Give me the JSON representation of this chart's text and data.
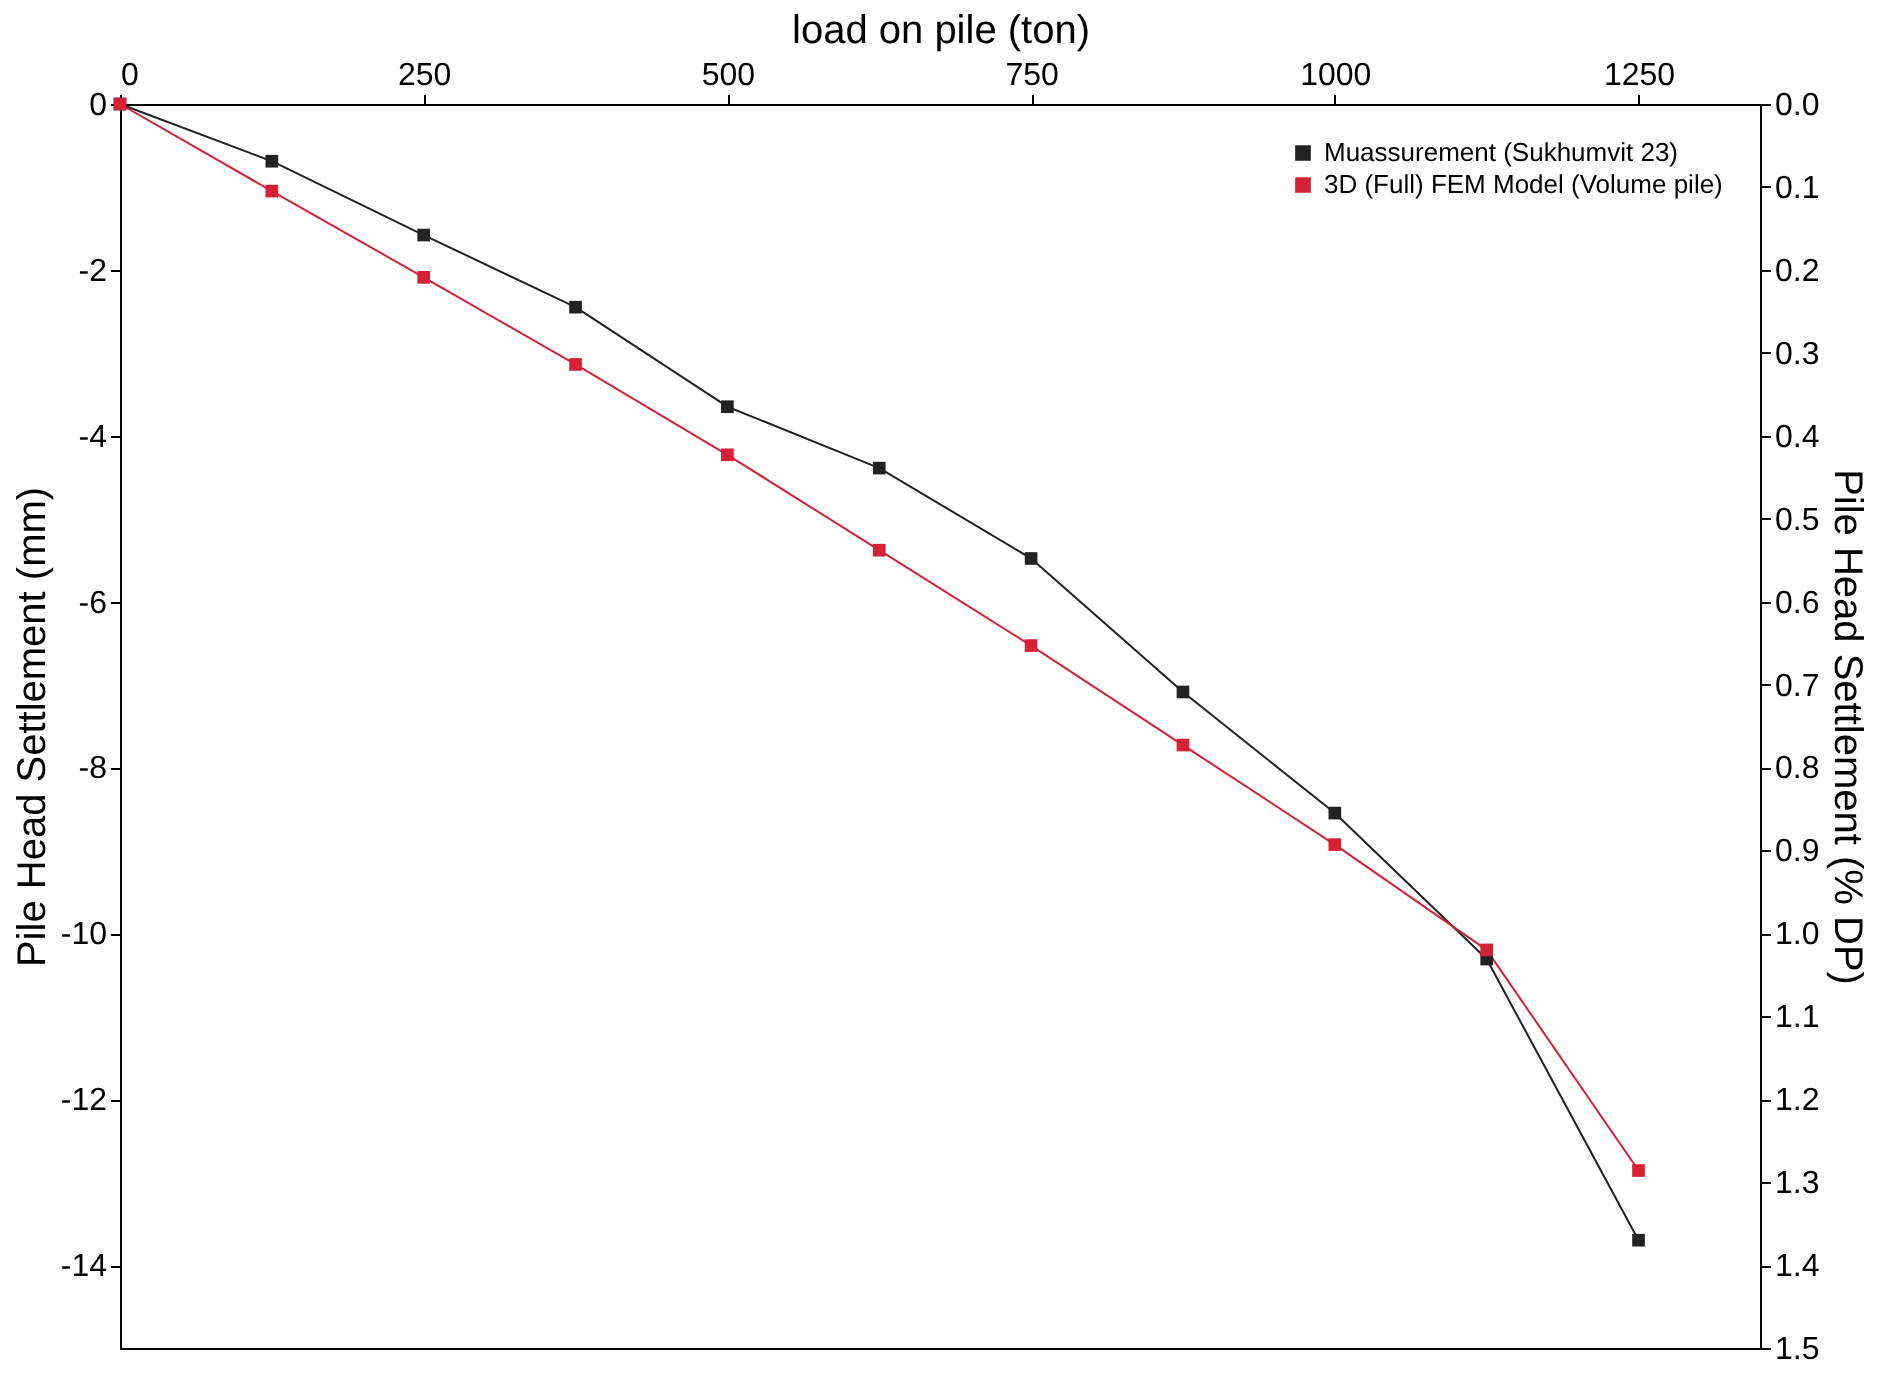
{
  "chart_data": {
    "type": "line",
    "xlabel": "load on pile (ton)",
    "ylabel": "Pile Head Settlement (mm)",
    "y2label": "Pile Head Settlement (% DP)",
    "x": [
      0,
      125,
      250,
      375,
      500,
      625,
      750,
      875,
      1000,
      1125,
      1250
    ],
    "series": [
      {
        "name": "Muassurement (Sukhumvit 23)",
        "color": "#222222",
        "values": [
          0,
          -0.69,
          -1.58,
          -2.45,
          -3.65,
          -4.39,
          -5.48,
          -7.09,
          -8.55,
          -10.31,
          -13.7
        ]
      },
      {
        "name": "3D (Full) FEM Model (Volume pile)",
        "color": "#d62035",
        "values": [
          0,
          -1.05,
          -2.09,
          -3.14,
          -4.23,
          -5.38,
          -6.53,
          -7.73,
          -8.93,
          -10.2,
          -12.86
        ]
      }
    ],
    "xlim": [
      0,
      1350
    ],
    "xticks": [
      0,
      250,
      500,
      750,
      1000,
      1250
    ],
    "ylim": [
      -15,
      0
    ],
    "yticks": [
      -14,
      -12,
      -10,
      -8,
      -6,
      -4,
      -2,
      0
    ],
    "y2lim": [
      1.5,
      0
    ],
    "y2ticks": [
      {
        "value": 0,
        "label": "0.0"
      },
      {
        "value": 0.1,
        "label": "0.1"
      },
      {
        "value": 0.2,
        "label": "0.2"
      },
      {
        "value": 0.3,
        "label": "0.3"
      },
      {
        "value": 0.4,
        "label": "0.4"
      },
      {
        "value": 0.5,
        "label": "0.5"
      },
      {
        "value": 0.6,
        "label": "0.6"
      },
      {
        "value": 0.7,
        "label": "0.7"
      },
      {
        "value": 0.8,
        "label": "0.8"
      },
      {
        "value": 0.9,
        "label": "0.9"
      },
      {
        "value": 1.0,
        "label": "1.0"
      },
      {
        "value": 1.1,
        "label": "1.1"
      },
      {
        "value": 1.2,
        "label": "1.2"
      },
      {
        "value": 1.3,
        "label": "1.3"
      },
      {
        "value": 1.4,
        "label": "1.4"
      },
      {
        "value": 1.5,
        "label": "1.5"
      }
    ],
    "legend": "top right",
    "marker": "square",
    "line_style": "solid",
    "grid": false
  }
}
